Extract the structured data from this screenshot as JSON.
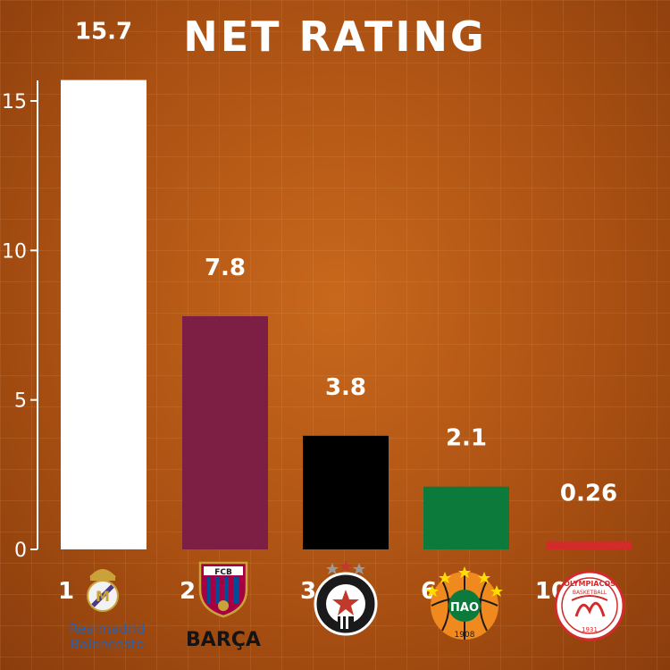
{
  "title": "NET RATING",
  "chart_data": {
    "type": "bar",
    "title": "NET RATING",
    "xlabel": "",
    "ylabel": "",
    "ylim": [
      0,
      16
    ],
    "yticks": [
      0,
      5,
      10,
      15
    ],
    "grid": true,
    "categories": [
      "Real Madrid Baloncesto",
      "FC Barcelona",
      "Partizan",
      "Panathinaikos",
      "Olympiacos"
    ],
    "ranks": [
      "1",
      "2",
      "3",
      "6",
      "10"
    ],
    "values": [
      15.7,
      7.8,
      3.8,
      2.1,
      0.26
    ],
    "value_labels": [
      "15.7",
      "7.8",
      "3.8",
      "2.1",
      "0.26"
    ],
    "bar_colors": [
      "#ffffff",
      "#7d1f45",
      "#000000",
      "#0b7a3b",
      "#d32a2a"
    ]
  },
  "logos": {
    "real_madrid": {
      "line1": "Realmadrid",
      "line2": "Baloncesto",
      "icon": "real-madrid-crest-icon"
    },
    "barca": {
      "wordmark": "BARÇA",
      "crest_text": "FCB",
      "icon": "fc-barcelona-crest-icon"
    },
    "partizan": {
      "icon": "partizan-crest-icon"
    },
    "panathinaikos": {
      "crest_text": "ΠΑΟ",
      "year": "1908",
      "icon": "panathinaikos-crest-icon"
    },
    "olympiacos": {
      "line1": "OLYMPIACOS",
      "line2": "BASKETBALL",
      "year": "1931",
      "icon": "olympiacos-crest-icon"
    }
  }
}
